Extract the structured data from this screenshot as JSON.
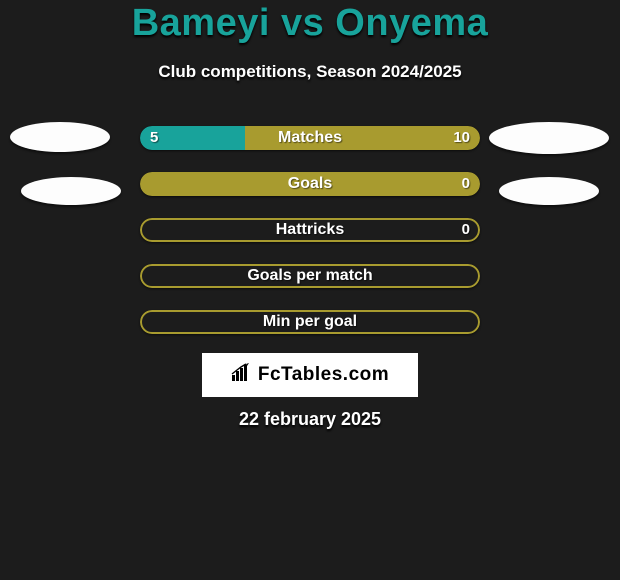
{
  "title": "Bameyi vs Onyema",
  "subtitle": "Club competitions, Season 2024/2025",
  "date": "22 february 2025",
  "logo": "FcTables.com",
  "colors": {
    "left": "#18a39b",
    "right": "#a89b2f",
    "background": "#1c1c1c",
    "text": "#ffffff"
  },
  "bars": [
    {
      "label": "Matches",
      "left_value": "5",
      "right_value": "10",
      "left_pct": 31,
      "right_pct": 69,
      "style": "filled",
      "show_values": true,
      "left_color": "#18a39b",
      "right_color": "#a89b2f"
    },
    {
      "label": "Goals",
      "left_value": "",
      "right_value": "0",
      "left_pct": 0,
      "right_pct": 100,
      "style": "filled",
      "show_values": true,
      "right_color": "#a89b2f"
    },
    {
      "label": "Hattricks",
      "left_value": "",
      "right_value": "0",
      "left_pct": 0,
      "right_pct": 100,
      "style": "hollow",
      "show_values": true,
      "right_color": "#a89b2f"
    },
    {
      "label": "Goals per match",
      "left_value": "",
      "right_value": "",
      "left_pct": 0,
      "right_pct": 100,
      "style": "hollow",
      "show_values": false,
      "right_color": "#a89b2f"
    },
    {
      "label": "Min per goal",
      "left_value": "",
      "right_value": "",
      "left_pct": 0,
      "right_pct": 100,
      "style": "hollow",
      "show_values": false,
      "right_color": "#a89b2f"
    }
  ]
}
